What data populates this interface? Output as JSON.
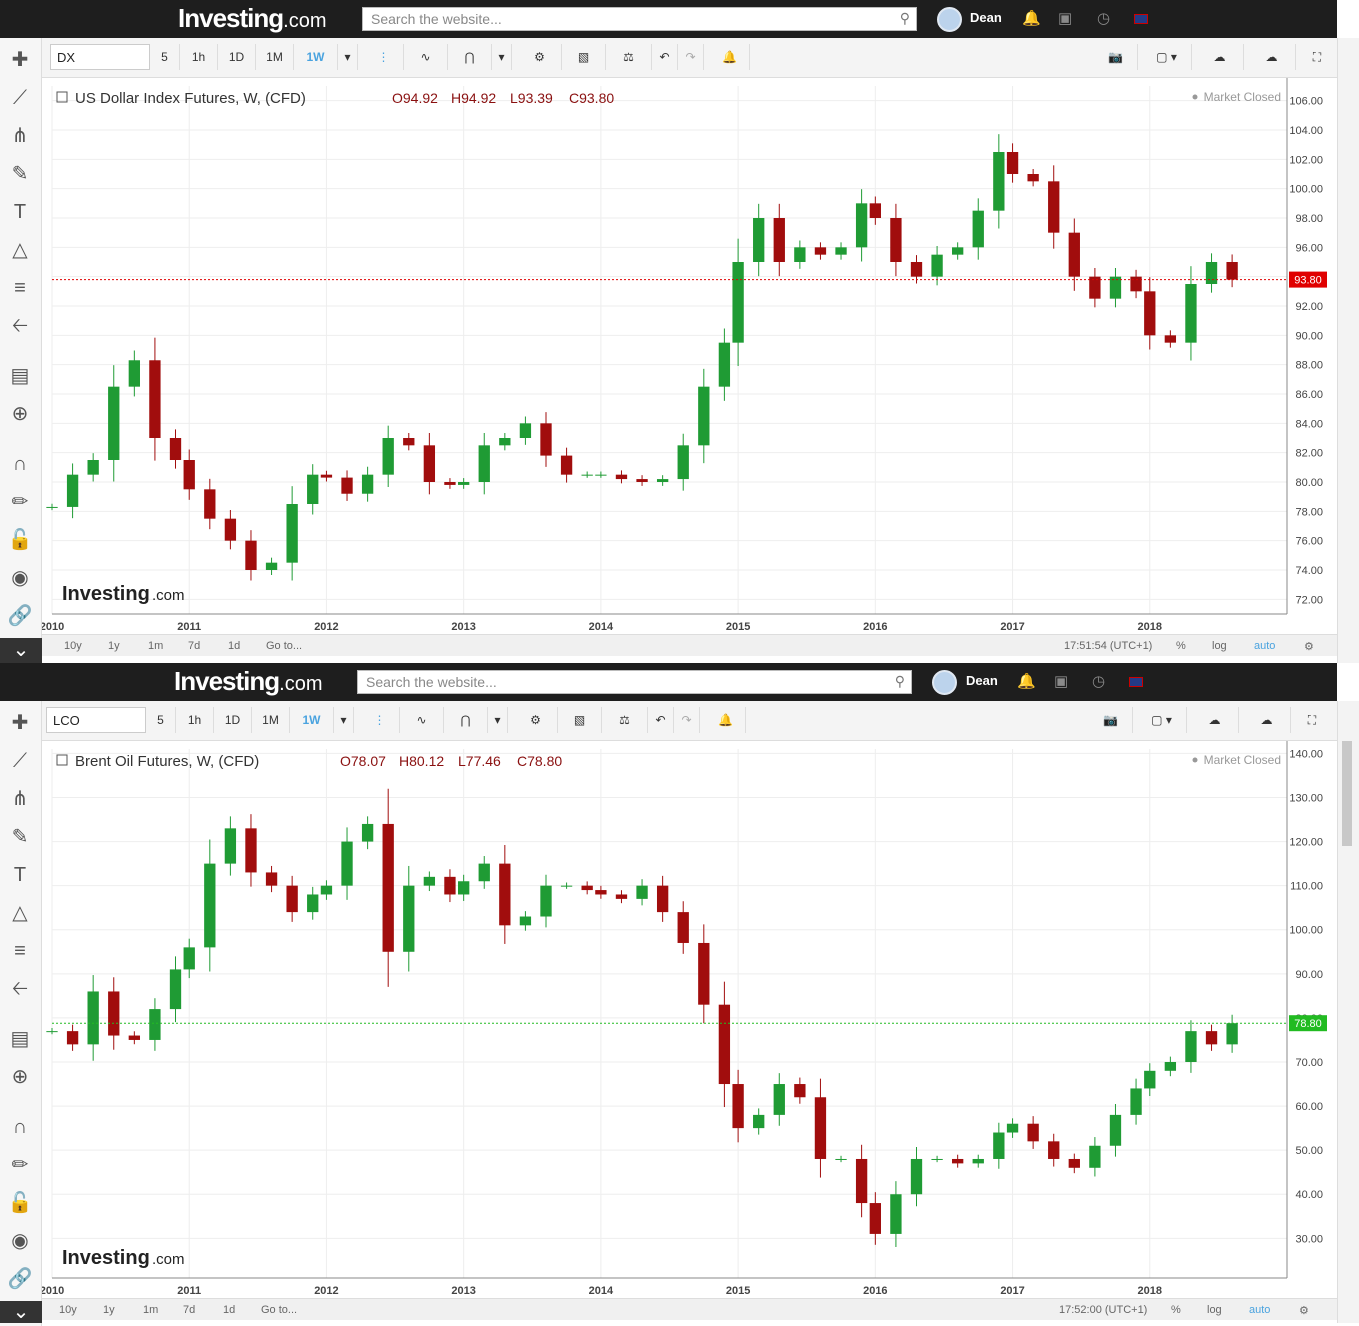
{
  "header": {
    "logo": "Investing",
    "logo_suffix": ".com",
    "search_placeholder": "Search the website...",
    "user_name": "Dean"
  },
  "toolbar": {
    "intervals": [
      "5",
      "1h",
      "1D",
      "1M",
      "1W"
    ],
    "active_interval": "1W"
  },
  "bottom": {
    "ranges": [
      "10y",
      "1y",
      "1m",
      "7d",
      "1d",
      "Go to..."
    ],
    "percent": "%",
    "log": "log",
    "auto": "auto"
  },
  "colors": {
    "up": "#1f9b34",
    "down": "#a10d0d",
    "dx_last": "#e00000",
    "lco_last": "#22bb22",
    "accent": "#4aa3df"
  },
  "panels": [
    {
      "symbol": "DX",
      "legend": "US Dollar Index Futures, W, (CFD)",
      "ohlc": {
        "o": "O94.92",
        "h": "H94.92",
        "l": "L93.39",
        "c": "C93.80"
      },
      "status": "Market Closed",
      "time": "17:51:54 (UTC+1)",
      "watermark": "Investing",
      "watermark_suffix": ".com"
    },
    {
      "symbol": "LCO",
      "legend": "Brent Oil Futures, W, (CFD)",
      "ohlc": {
        "o": "O78.07",
        "h": "H80.12",
        "l": "L77.46",
        "c": "C78.80"
      },
      "status": "Market Closed",
      "time": "17:52:00 (UTC+1)",
      "watermark": "Investing",
      "watermark_suffix": ".com"
    }
  ],
  "chart_data": [
    {
      "type": "candlestick",
      "title": "US Dollar Index Futures, W, (CFD)",
      "x_ticks": [
        "2010",
        "2011",
        "2012",
        "2013",
        "2014",
        "2015",
        "2016",
        "2017",
        "2018"
      ],
      "y_ticks": [
        "72.00",
        "74.00",
        "76.00",
        "78.00",
        "80.00",
        "82.00",
        "84.00",
        "86.00",
        "88.00",
        "90.00",
        "92.00",
        "94.00",
        "96.00",
        "98.00",
        "100.00",
        "102.00",
        "104.00",
        "106.00"
      ],
      "ylim": [
        71,
        107
      ],
      "last_value": "93.80",
      "grid": true,
      "x": [
        2010.0,
        2010.15,
        2010.3,
        2010.45,
        2010.6,
        2010.75,
        2010.9,
        2011.0,
        2011.15,
        2011.3,
        2011.45,
        2011.6,
        2011.75,
        2011.9,
        2012.0,
        2012.15,
        2012.3,
        2012.45,
        2012.6,
        2012.75,
        2012.9,
        2013.0,
        2013.15,
        2013.3,
        2013.45,
        2013.6,
        2013.75,
        2013.9,
        2014.0,
        2014.15,
        2014.3,
        2014.45,
        2014.6,
        2014.75,
        2014.9,
        2015.0,
        2015.15,
        2015.3,
        2015.45,
        2015.6,
        2015.75,
        2015.9,
        2016.0,
        2016.15,
        2016.3,
        2016.45,
        2016.6,
        2016.75,
        2016.9,
        2017.0,
        2017.15,
        2017.3,
        2017.45,
        2017.6,
        2017.75,
        2017.9,
        2018.0,
        2018.15,
        2018.3,
        2018.45,
        2018.6
      ],
      "close": [
        78.3,
        80.5,
        81.5,
        86.5,
        88.3,
        83.0,
        81.5,
        79.5,
        77.5,
        76.0,
        74.0,
        74.5,
        78.5,
        80.5,
        80.3,
        79.2,
        80.5,
        83.0,
        82.5,
        80.0,
        79.8,
        80.0,
        82.5,
        83.0,
        84.0,
        81.8,
        80.5,
        80.5,
        80.5,
        80.2,
        80.0,
        80.2,
        82.5,
        86.5,
        89.5,
        95.0,
        98.0,
        95.0,
        96.0,
        95.5,
        96.0,
        99.0,
        98.0,
        95.0,
        94.0,
        95.5,
        96.0,
        98.5,
        102.5,
        101.0,
        100.5,
        97.0,
        94.0,
        92.5,
        94.0,
        93.0,
        90.0,
        89.5,
        93.5,
        95.0,
        93.8
      ]
    },
    {
      "type": "candlestick",
      "title": "Brent Oil Futures, W, (CFD)",
      "x_ticks": [
        "2010",
        "2011",
        "2012",
        "2013",
        "2014",
        "2015",
        "2016",
        "2017",
        "2018"
      ],
      "y_ticks": [
        "30.00",
        "40.00",
        "50.00",
        "60.00",
        "70.00",
        "80.00",
        "90.00",
        "100.00",
        "110.00",
        "120.00",
        "130.00",
        "140.00"
      ],
      "ylim": [
        21,
        141
      ],
      "last_value": "78.80",
      "grid": true,
      "x": [
        2010.0,
        2010.15,
        2010.3,
        2010.45,
        2010.6,
        2010.75,
        2010.9,
        2011.0,
        2011.15,
        2011.3,
        2011.45,
        2011.6,
        2011.75,
        2011.9,
        2012.0,
        2012.15,
        2012.3,
        2012.45,
        2012.6,
        2012.75,
        2012.9,
        2013.0,
        2013.15,
        2013.3,
        2013.45,
        2013.6,
        2013.75,
        2013.9,
        2014.0,
        2014.15,
        2014.3,
        2014.45,
        2014.6,
        2014.75,
        2014.9,
        2015.0,
        2015.15,
        2015.3,
        2015.45,
        2015.6,
        2015.75,
        2015.9,
        2016.0,
        2016.15,
        2016.3,
        2016.45,
        2016.6,
        2016.75,
        2016.9,
        2017.0,
        2017.15,
        2017.3,
        2017.45,
        2017.6,
        2017.75,
        2017.9,
        2018.0,
        2018.15,
        2018.3,
        2018.45,
        2018.6
      ],
      "close": [
        77.0,
        74.0,
        86.0,
        76.0,
        75.0,
        82.0,
        91.0,
        96.0,
        115.0,
        123.0,
        113.0,
        110.0,
        104.0,
        108.0,
        110.0,
        120.0,
        124.0,
        95.0,
        110.0,
        112.0,
        108.0,
        111.0,
        115.0,
        101.0,
        103.0,
        110.0,
        110.0,
        109.0,
        108.0,
        107.0,
        110.0,
        104.0,
        97.0,
        83.0,
        65.0,
        55.0,
        58.0,
        65.0,
        62.0,
        48.0,
        48.0,
        38.0,
        31.0,
        40.0,
        48.0,
        48.0,
        47.0,
        48.0,
        54.0,
        56.0,
        52.0,
        48.0,
        46.0,
        51.0,
        58.0,
        64.0,
        68.0,
        70.0,
        77.0,
        74.0,
        78.8
      ]
    }
  ]
}
